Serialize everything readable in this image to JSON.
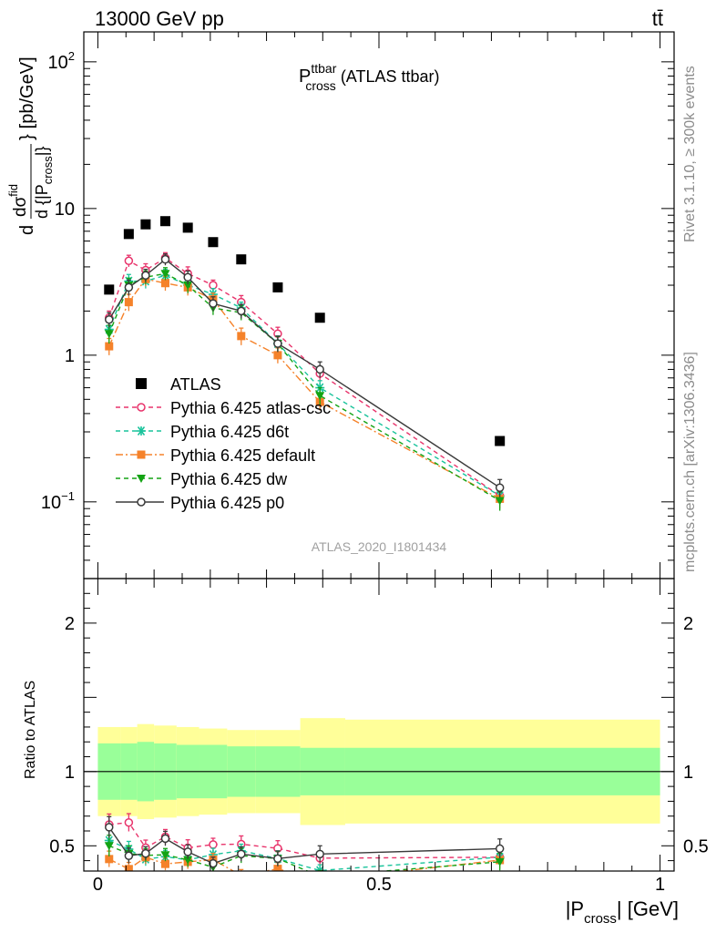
{
  "header": {
    "left": "13000 GeV pp",
    "right": "tt̄"
  },
  "plot_title": {
    "main": "P",
    "sup": "ttbar",
    "sub": "cross",
    "suffix": " (ATLAS ttbar)"
  },
  "side_labels": {
    "rivet": "Rivet 3.1.10, ≥ 300k events",
    "mcplots": "mcplots.cern.ch [arXiv:1306.3436]"
  },
  "watermark": "ATLAS_2020_I1801434",
  "ylabel_main": {
    "d": "d",
    "num": "dσ",
    "num_sup": "fid",
    "den": "d {|P",
    "den_sub": "cross",
    "den_close": "|}",
    "brace": "}",
    "units": "[pb/GeV]"
  },
  "ylabel_ratio": "Ratio to ATLAS",
  "xlabel": {
    "pre": "|P",
    "sub": "cross",
    "post": "| [GeV]"
  },
  "main_y_ticks": [
    {
      "value": 100,
      "label": "10",
      "sup": "2"
    },
    {
      "value": 10,
      "label": "10",
      "sup": ""
    },
    {
      "value": 1,
      "label": "1",
      "sup": ""
    },
    {
      "value": 0.1,
      "label": "10",
      "sup": "−1"
    }
  ],
  "ratio_y_ticks": [
    {
      "value": 2,
      "label": "2"
    },
    {
      "value": 1,
      "label": "1"
    },
    {
      "value": 0.5,
      "label": "0.5"
    }
  ],
  "x_ticks": [
    {
      "value": 0,
      "label": "0"
    },
    {
      "value": 0.5,
      "label": "0.5"
    },
    {
      "value": 1,
      "label": "1"
    }
  ],
  "chart_data": {
    "type": "scatter",
    "xlim": [
      -0.025,
      1.025
    ],
    "ylim_main": [
      0.03,
      160
    ],
    "yscale_main": "log",
    "ylim_ratio": [
      0.33,
      2.3
    ],
    "legend_position": "center-left",
    "bins": [
      {
        "lo": 0.0,
        "hi": 0.04
      },
      {
        "lo": 0.04,
        "hi": 0.07
      },
      {
        "lo": 0.07,
        "hi": 0.1
      },
      {
        "lo": 0.1,
        "hi": 0.14
      },
      {
        "lo": 0.14,
        "hi": 0.18
      },
      {
        "lo": 0.18,
        "hi": 0.23
      },
      {
        "lo": 0.23,
        "hi": 0.28
      },
      {
        "lo": 0.28,
        "hi": 0.36
      },
      {
        "lo": 0.36,
        "hi": 0.44
      },
      {
        "lo": 0.44,
        "hi": 1.0
      }
    ],
    "x": [
      0.02,
      0.055,
      0.085,
      0.12,
      0.16,
      0.205,
      0.255,
      0.32,
      0.395,
      0.715
    ],
    "data": {
      "name": "ATLAS",
      "values": [
        2.8,
        6.7,
        7.8,
        8.2,
        7.4,
        5.9,
        4.5,
        2.9,
        1.8,
        0.26
      ],
      "band_inner": [
        0.19,
        0.19,
        0.2,
        0.19,
        0.18,
        0.18,
        0.17,
        0.17,
        0.16,
        0.16
      ],
      "band_outer": [
        0.3,
        0.3,
        0.32,
        0.31,
        0.3,
        0.29,
        0.28,
        0.28,
        0.36,
        0.35
      ]
    },
    "series": [
      {
        "name": "Pythia 6.425 atlas-csc",
        "color": "#e8336b",
        "marker": "circle-open",
        "dash": "5,4",
        "values": [
          1.8,
          4.4,
          3.8,
          4.6,
          3.6,
          3.0,
          2.3,
          1.4,
          0.75,
          0.11
        ],
        "err": [
          0.2,
          0.4,
          0.4,
          0.4,
          0.4,
          0.25,
          0.25,
          0.15,
          0.08,
          0.015
        ]
      },
      {
        "name": "Pythia 6.425 d6t",
        "color": "#19c39b",
        "marker": "asterisk",
        "dash": "5,4",
        "values": [
          1.5,
          3.2,
          3.2,
          3.5,
          3.0,
          2.6,
          2.1,
          1.2,
          0.6,
          0.11
        ],
        "err": [
          0.2,
          0.35,
          0.35,
          0.35,
          0.35,
          0.25,
          0.2,
          0.15,
          0.07,
          0.015
        ]
      },
      {
        "name": "Pythia 6.425 default",
        "color": "#f5822a",
        "marker": "square",
        "dash": "8,3,2,3",
        "values": [
          1.15,
          2.3,
          3.3,
          3.1,
          2.9,
          2.4,
          1.35,
          1.0,
          0.48,
          0.105
        ],
        "err": [
          0.15,
          0.3,
          0.35,
          0.35,
          0.35,
          0.25,
          0.18,
          0.12,
          0.06,
          0.015
        ]
      },
      {
        "name": "Pythia 6.425 dw",
        "color": "#13a313",
        "marker": "triangle-down",
        "dash": "5,4",
        "values": [
          1.4,
          3.0,
          3.4,
          3.6,
          3.0,
          2.1,
          1.95,
          1.2,
          0.53,
          0.102
        ],
        "err": [
          0.2,
          0.35,
          0.35,
          0.35,
          0.35,
          0.22,
          0.22,
          0.14,
          0.07,
          0.015
        ]
      },
      {
        "name": "Pythia 6.425 p0",
        "color": "#3a3a3a",
        "marker": "circle-open",
        "dash": "",
        "values": [
          1.75,
          2.9,
          3.5,
          4.5,
          3.4,
          2.25,
          2.0,
          1.2,
          0.8,
          0.125
        ],
        "err": [
          0.2,
          0.35,
          0.35,
          0.4,
          0.35,
          0.25,
          0.22,
          0.15,
          0.1,
          0.017
        ]
      }
    ]
  }
}
